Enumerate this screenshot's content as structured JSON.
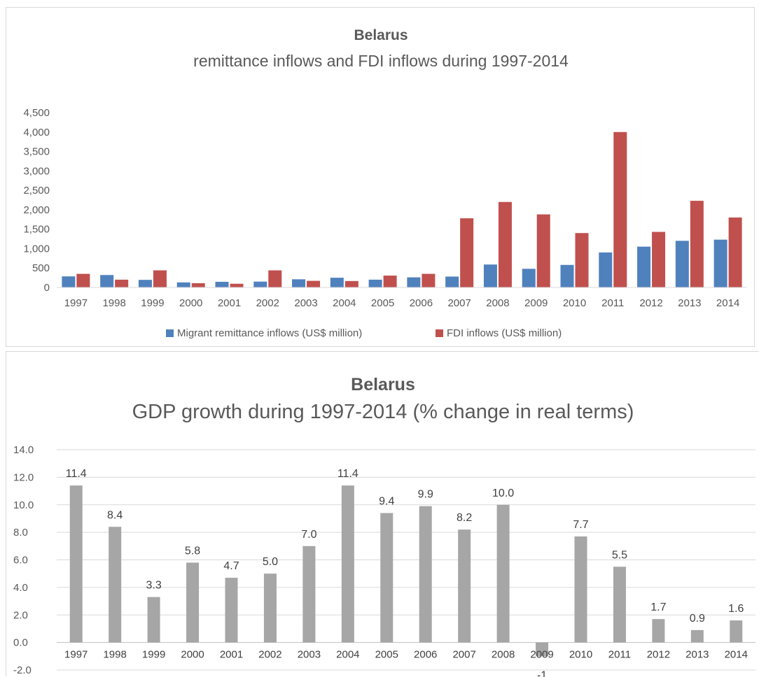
{
  "chart_data": [
    {
      "type": "bar",
      "title": "Belarus",
      "subtitle": "remittance inflows and FDI inflows during 1997-2014",
      "categories": [
        "1997",
        "1998",
        "1999",
        "2000",
        "2001",
        "2002",
        "2003",
        "2004",
        "2005",
        "2006",
        "2007",
        "2008",
        "2009",
        "2010",
        "2011",
        "2012",
        "2013",
        "2014"
      ],
      "series": [
        {
          "name": "Migrant remittance inflows (US$ million)",
          "color": "#4f81bd",
          "values": [
            285,
            320,
            195,
            130,
            145,
            150,
            210,
            250,
            200,
            260,
            280,
            590,
            480,
            580,
            900,
            1050,
            1200,
            1230
          ]
        },
        {
          "name": "FDI inflows (US$ million)",
          "color": "#c0504d",
          "values": [
            350,
            200,
            440,
            110,
            95,
            440,
            170,
            165,
            305,
            350,
            1780,
            2200,
            1880,
            1400,
            4000,
            1430,
            2230,
            1800
          ]
        }
      ],
      "ylim": [
        0,
        4500
      ],
      "yticks": [
        0,
        500,
        1000,
        1500,
        2000,
        2500,
        3000,
        3500,
        4000,
        4500
      ],
      "ytick_labels": [
        "0",
        "500",
        "1,000",
        "1,500",
        "2,000",
        "2,500",
        "3,000",
        "3,500",
        "4,000",
        "4,500"
      ],
      "grid": false,
      "legend": "bottom"
    },
    {
      "type": "bar",
      "title": "Belarus",
      "subtitle": "GDP growth during 1997-2014 (% change in real terms)",
      "categories": [
        "1997",
        "1998",
        "1999",
        "2000",
        "2001",
        "2002",
        "2003",
        "2004",
        "2005",
        "2006",
        "2007",
        "2008",
        "2009",
        "2010",
        "2011",
        "2012",
        "2013",
        "2014"
      ],
      "series": [
        {
          "color": "#a6a6a6",
          "values": [
            11.4,
            8.4,
            3.3,
            5.8,
            4.7,
            5.0,
            7.0,
            11.4,
            9.4,
            9.9,
            8.2,
            10.0,
            -1,
            7.7,
            5.5,
            1.7,
            0.9,
            1.6
          ]
        }
      ],
      "data_labels": [
        "11.4",
        "8.4",
        "3.3",
        "5.8",
        "4.7",
        "5.0",
        "7.0",
        "11.4",
        "9.4",
        "9.9",
        "8.2",
        "10.0",
        "-1",
        "7.7",
        "5.5",
        "1.7",
        "0.9",
        "1.6"
      ],
      "ylim": [
        -2,
        14
      ],
      "yticks": [
        -2,
        0,
        2,
        4,
        6,
        8,
        10,
        12,
        14
      ],
      "ytick_labels": [
        "-2.0",
        "0.0",
        "2.0",
        "4.0",
        "6.0",
        "8.0",
        "10.0",
        "12.0",
        "14.0"
      ],
      "grid": true,
      "legend": "none"
    }
  ]
}
